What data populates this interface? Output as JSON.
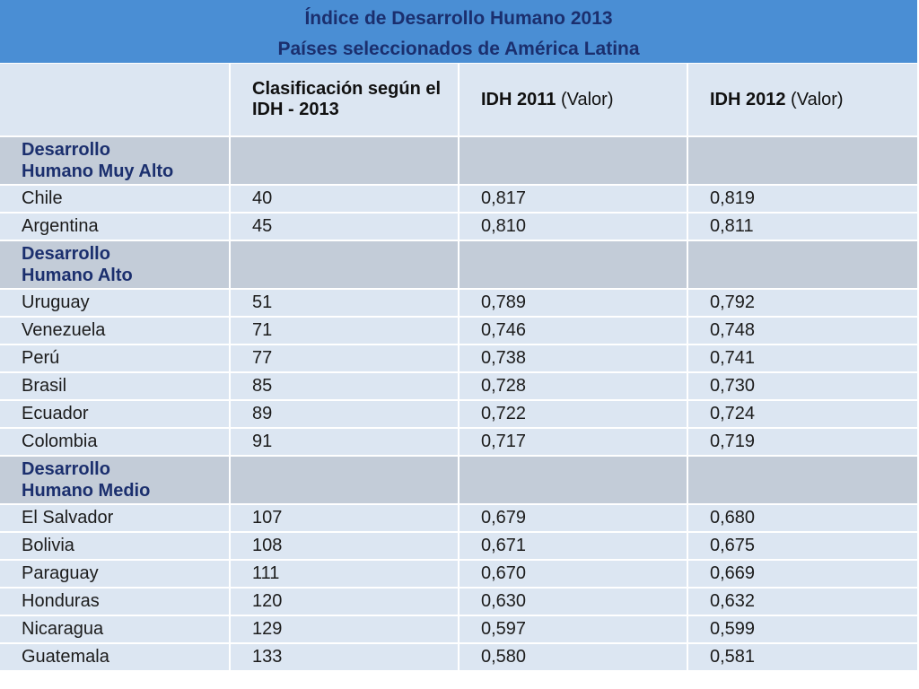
{
  "title": {
    "line1": "Índice de Desarrollo Humano 2013",
    "line2": "Países seleccionados de América Latina"
  },
  "header": {
    "col1": "",
    "col2": "Clasificación según el IDH - 2013",
    "col3_bold": "IDH 2011",
    "col3_rest": " (Valor)",
    "col4_bold": "IDH 2012",
    "col4_rest": " (Valor)"
  },
  "groups": [
    {
      "label": "Desarrollo Humano Muy Alto",
      "rows": [
        {
          "country": "Chile",
          "rank": "40",
          "idh2011": "0,817",
          "idh2012": "0,819"
        },
        {
          "country": "Argentina",
          "rank": "45",
          "idh2011": "0,810",
          "idh2012": "0,811"
        }
      ]
    },
    {
      "label": "Desarrollo Humano Alto",
      "rows": [
        {
          "country": "Uruguay",
          "rank": "51",
          "idh2011": "0,789",
          "idh2012": "0,792"
        },
        {
          "country": "Venezuela",
          "rank": "71",
          "idh2011": "0,746",
          "idh2012": "0,748"
        },
        {
          "country": "Perú",
          "rank": "77",
          "idh2011": "0,738",
          "idh2012": "0,741"
        },
        {
          "country": "Brasil",
          "rank": "85",
          "idh2011": "0,728",
          "idh2012": "0,730"
        },
        {
          "country": "Ecuador",
          "rank": "89",
          "idh2011": "0,722",
          "idh2012": "0,724"
        },
        {
          "country": "Colombia",
          "rank": "91",
          "idh2011": "0,717",
          "idh2012": "0,719"
        }
      ]
    },
    {
      "label": "Desarrollo Humano Medio",
      "rows": [
        {
          "country": "El Salvador",
          "rank": "107",
          "idh2011": "0,679",
          "idh2012": "0,680"
        },
        {
          "country": "Bolivia",
          "rank": "108",
          "idh2011": "0,671",
          "idh2012": "0,675"
        },
        {
          "country": "Paraguay",
          "rank": "111",
          "idh2011": "0,670",
          "idh2012": "0,669"
        },
        {
          "country": "Honduras",
          "rank": "120",
          "idh2011": "0,630",
          "idh2012": "0,632"
        },
        {
          "country": "Nicaragua",
          "rank": "129",
          "idh2011": "0,597",
          "idh2012": "0,599"
        },
        {
          "country": "Guatemala",
          "rank": "133",
          "idh2011": "0,580",
          "idh2012": "0,581"
        }
      ]
    }
  ],
  "colors": {
    "title_bg": "#4a8ed4",
    "title_text": "#1b2f6e",
    "row_bg": "#dce6f2",
    "group_bg": "#c3ccd8"
  }
}
